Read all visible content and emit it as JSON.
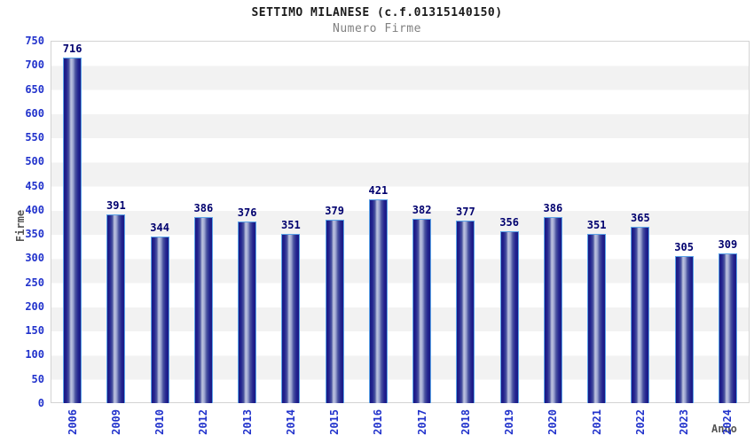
{
  "chart_data": {
    "type": "bar",
    "title": "SETTIMO MILANESE (c.f.01315140150)",
    "subtitle": "Numero Firme",
    "xlabel": "Anno",
    "ylabel": "Firme",
    "categories": [
      "2006",
      "2009",
      "2010",
      "2012",
      "2013",
      "2014",
      "2015",
      "2016",
      "2017",
      "2018",
      "2019",
      "2020",
      "2021",
      "2022",
      "2023",
      "2024"
    ],
    "values": [
      716,
      391,
      344,
      386,
      376,
      351,
      379,
      421,
      382,
      377,
      356,
      386,
      351,
      365,
      305,
      309
    ],
    "ylim": [
      0,
      750
    ],
    "ytick_step": 50,
    "yticks": [
      0,
      50,
      100,
      150,
      200,
      250,
      300,
      350,
      400,
      450,
      500,
      550,
      600,
      650,
      700,
      750
    ],
    "grid": "horizontal-alternating-bands",
    "legend": "none",
    "bar_value_labels_shown": true
  },
  "colors": {
    "tick_label": "#2233cc",
    "value_label": "#00006e",
    "title": "#1a1a1a",
    "subtitle": "#808080",
    "axis_title": "#555555",
    "band_light": "#ffffff",
    "band_dark": "#f2f2f2",
    "plot_border": "#d3d3d3",
    "bar_dark": "#191983",
    "bar_light": "#c0c5e0",
    "bar_border": "#5ba3e8"
  }
}
